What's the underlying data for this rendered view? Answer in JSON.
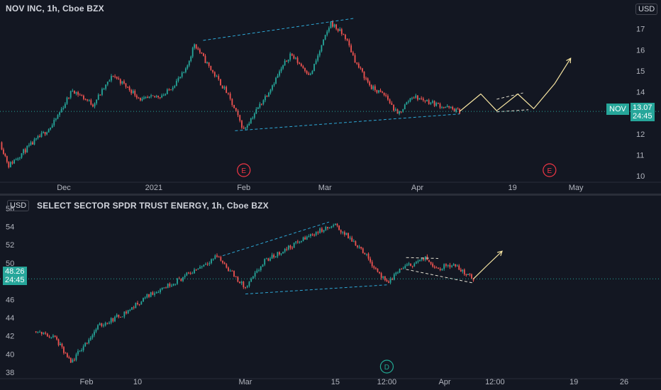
{
  "chart_data": [
    {
      "type": "candlestick",
      "title": "NOV INC, 1h, Cboe BZX",
      "currency": "USD",
      "yticks": [
        "17",
        "16",
        "15",
        "14",
        "13",
        "12",
        "11",
        "10"
      ],
      "ylim": [
        9.7,
        17.9
      ],
      "xticks": [
        "Dec",
        "2021",
        "Feb",
        "Mar",
        "Apr",
        "19",
        "May"
      ],
      "last_price": "13.07",
      "countdown": "24:45",
      "symbol": "NOV",
      "event_markers": [
        "E",
        "E"
      ],
      "grid": false,
      "price_path": {
        "dates": [
          "2020-11-09",
          "2020-11-12",
          "2020-11-19",
          "2020-11-27",
          "2020-12-04",
          "2020-12-11",
          "2020-12-18",
          "2020-12-28",
          "2021-01-05",
          "2021-01-12",
          "2021-01-15",
          "2021-01-20",
          "2021-01-26",
          "2021-02-01",
          "2021-02-09",
          "2021-02-17",
          "2021-02-24",
          "2021-03-03",
          "2021-03-08",
          "2021-03-12",
          "2021-03-17",
          "2021-03-22",
          "2021-03-26",
          "2021-03-31",
          "2021-04-06",
          "2021-04-09"
        ],
        "values": [
          11.6,
          10.5,
          11.4,
          12.4,
          14.1,
          13.4,
          14.8,
          13.6,
          13.9,
          15.0,
          16.3,
          15.2,
          14.0,
          12.2,
          13.9,
          15.8,
          14.8,
          17.3,
          16.6,
          15.3,
          14.2,
          13.8,
          12.9,
          13.8,
          13.3,
          13.07
        ]
      },
      "projection": {
        "dates": [
          "2021-04-09",
          "2021-04-13",
          "2021-04-16",
          "2021-04-20",
          "2021-04-23",
          "2021-04-27",
          "2021-04-30"
        ],
        "values": [
          13.07,
          13.9,
          13.1,
          13.9,
          13.2,
          14.4,
          15.6
        ]
      }
    },
    {
      "type": "candlestick",
      "title": "SELECT SECTOR SPDR TRUST ENERGY, 1h, Cboe BZX",
      "currency": "USD",
      "yticks": [
        "56",
        "54",
        "52",
        "50",
        "48",
        "46",
        "44",
        "42",
        "40",
        "38"
      ],
      "ylim": [
        37.3,
        56.3
      ],
      "xticks": [
        "Feb",
        "10",
        "Mar",
        "15",
        "12:00",
        "Apr",
        "12:00",
        "19",
        "26"
      ],
      "last_price": "48.26",
      "countdown": "24:45",
      "event_markers": [
        "D"
      ],
      "grid": false,
      "price_path": {
        "dates": [
          "2021-01-22",
          "2021-01-26",
          "2021-01-29",
          "2021-02-03",
          "2021-02-08",
          "2021-02-12",
          "2021-02-18",
          "2021-02-24",
          "2021-03-01",
          "2021-03-04",
          "2021-03-08",
          "2021-03-12",
          "2021-03-15",
          "2021-03-19",
          "2021-03-23",
          "2021-03-25",
          "2021-03-29",
          "2021-03-31",
          "2021-04-02",
          "2021-04-05"
        ],
        "values": [
          42.5,
          41.8,
          39.0,
          43.0,
          44.6,
          46.5,
          48.4,
          50.8,
          47.2,
          50.2,
          51.8,
          53.4,
          54.1,
          51.6,
          47.7,
          49.3,
          50.5,
          49.4,
          49.9,
          48.26
        ]
      },
      "projection": {
        "dates": [
          "2021-04-05",
          "2021-04-07",
          "2021-04-09"
        ],
        "values": [
          48.26,
          49.8,
          51.3
        ]
      }
    }
  ]
}
